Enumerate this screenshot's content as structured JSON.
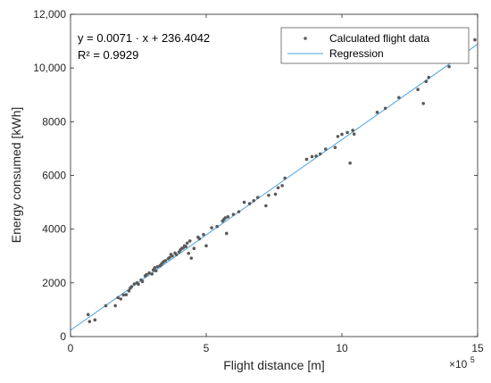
{
  "chart_data": {
    "type": "scatter",
    "xlabel": "Flight distance [m]",
    "ylabel": "Energy consumed [kWh]",
    "x_multiplier_label": "×10",
    "x_multiplier_exponent": "5",
    "x_scale": 100000,
    "xlim": [
      0,
      1500000
    ],
    "ylim": [
      0,
      12000
    ],
    "x_ticks": [
      0,
      500000,
      1000000,
      1500000
    ],
    "x_tick_labels": [
      "0",
      "5",
      "10",
      "15"
    ],
    "y_ticks": [
      0,
      2000,
      4000,
      6000,
      8000,
      10000,
      12000
    ],
    "y_tick_labels": [
      "0",
      "2000",
      "4000",
      "6000",
      "8000",
      "10,000",
      "12,000"
    ],
    "grid": false,
    "legend_position": "top-right",
    "annotation_lines": [
      "y = 0.0071 · x + 236.4042",
      "R² = 0.9929"
    ],
    "colors": {
      "scatter": "#5a5a5a",
      "regression": "#4aa3df",
      "axis": "#262626"
    },
    "series": [
      {
        "name": "Calculated flight data",
        "kind": "scatter",
        "points": [
          [
            65000,
            820
          ],
          [
            70000,
            560
          ],
          [
            90000,
            620
          ],
          [
            130000,
            1150
          ],
          [
            165000,
            1150
          ],
          [
            175000,
            1450
          ],
          [
            185000,
            1400
          ],
          [
            195000,
            1550
          ],
          [
            205000,
            1560
          ],
          [
            215000,
            1700
          ],
          [
            220000,
            1800
          ],
          [
            225000,
            1860
          ],
          [
            235000,
            1960
          ],
          [
            245000,
            2000
          ],
          [
            250000,
            1950
          ],
          [
            260000,
            2110
          ],
          [
            265000,
            2050
          ],
          [
            275000,
            2260
          ],
          [
            280000,
            2310
          ],
          [
            290000,
            2370
          ],
          [
            300000,
            2330
          ],
          [
            305000,
            2480
          ],
          [
            310000,
            2560
          ],
          [
            315000,
            2450
          ],
          [
            320000,
            2600
          ],
          [
            330000,
            2640
          ],
          [
            335000,
            2700
          ],
          [
            340000,
            2760
          ],
          [
            345000,
            2800
          ],
          [
            350000,
            2830
          ],
          [
            360000,
            2900
          ],
          [
            365000,
            2940
          ],
          [
            370000,
            3060
          ],
          [
            375000,
            3000
          ],
          [
            385000,
            3110
          ],
          [
            390000,
            3050
          ],
          [
            400000,
            3150
          ],
          [
            405000,
            3230
          ],
          [
            410000,
            3280
          ],
          [
            415000,
            3300
          ],
          [
            420000,
            3380
          ],
          [
            425000,
            3350
          ],
          [
            430000,
            3480
          ],
          [
            435000,
            3100
          ],
          [
            440000,
            3560
          ],
          [
            445000,
            2920
          ],
          [
            455000,
            3280
          ],
          [
            470000,
            3700
          ],
          [
            475000,
            3640
          ],
          [
            490000,
            3800
          ],
          [
            500000,
            3380
          ],
          [
            520000,
            4050
          ],
          [
            540000,
            4100
          ],
          [
            560000,
            4300
          ],
          [
            565000,
            4360
          ],
          [
            570000,
            4420
          ],
          [
            575000,
            3840
          ],
          [
            580000,
            4460
          ],
          [
            600000,
            4550
          ],
          [
            620000,
            4650
          ],
          [
            640000,
            5000
          ],
          [
            660000,
            4950
          ],
          [
            675000,
            5060
          ],
          [
            690000,
            5180
          ],
          [
            720000,
            4870
          ],
          [
            730000,
            5260
          ],
          [
            755000,
            5300
          ],
          [
            765000,
            5540
          ],
          [
            780000,
            5620
          ],
          [
            790000,
            5900
          ],
          [
            870000,
            6600
          ],
          [
            890000,
            6700
          ],
          [
            905000,
            6720
          ],
          [
            920000,
            6800
          ],
          [
            940000,
            6980
          ],
          [
            975000,
            7040
          ],
          [
            985000,
            7450
          ],
          [
            1000000,
            7530
          ],
          [
            1020000,
            7600
          ],
          [
            1030000,
            6460
          ],
          [
            1040000,
            7680
          ],
          [
            1045000,
            7540
          ],
          [
            1130000,
            8350
          ],
          [
            1160000,
            8500
          ],
          [
            1210000,
            8900
          ],
          [
            1280000,
            9200
          ],
          [
            1300000,
            8680
          ],
          [
            1310000,
            9500
          ],
          [
            1320000,
            9650
          ],
          [
            1395000,
            10050
          ],
          [
            1410000,
            10400
          ],
          [
            1420000,
            10300
          ],
          [
            1490000,
            11050
          ]
        ]
      },
      {
        "name": "Regression",
        "kind": "line",
        "slope": 0.0071,
        "intercept": 236.4042,
        "x_range": [
          0,
          1500000
        ]
      }
    ]
  }
}
